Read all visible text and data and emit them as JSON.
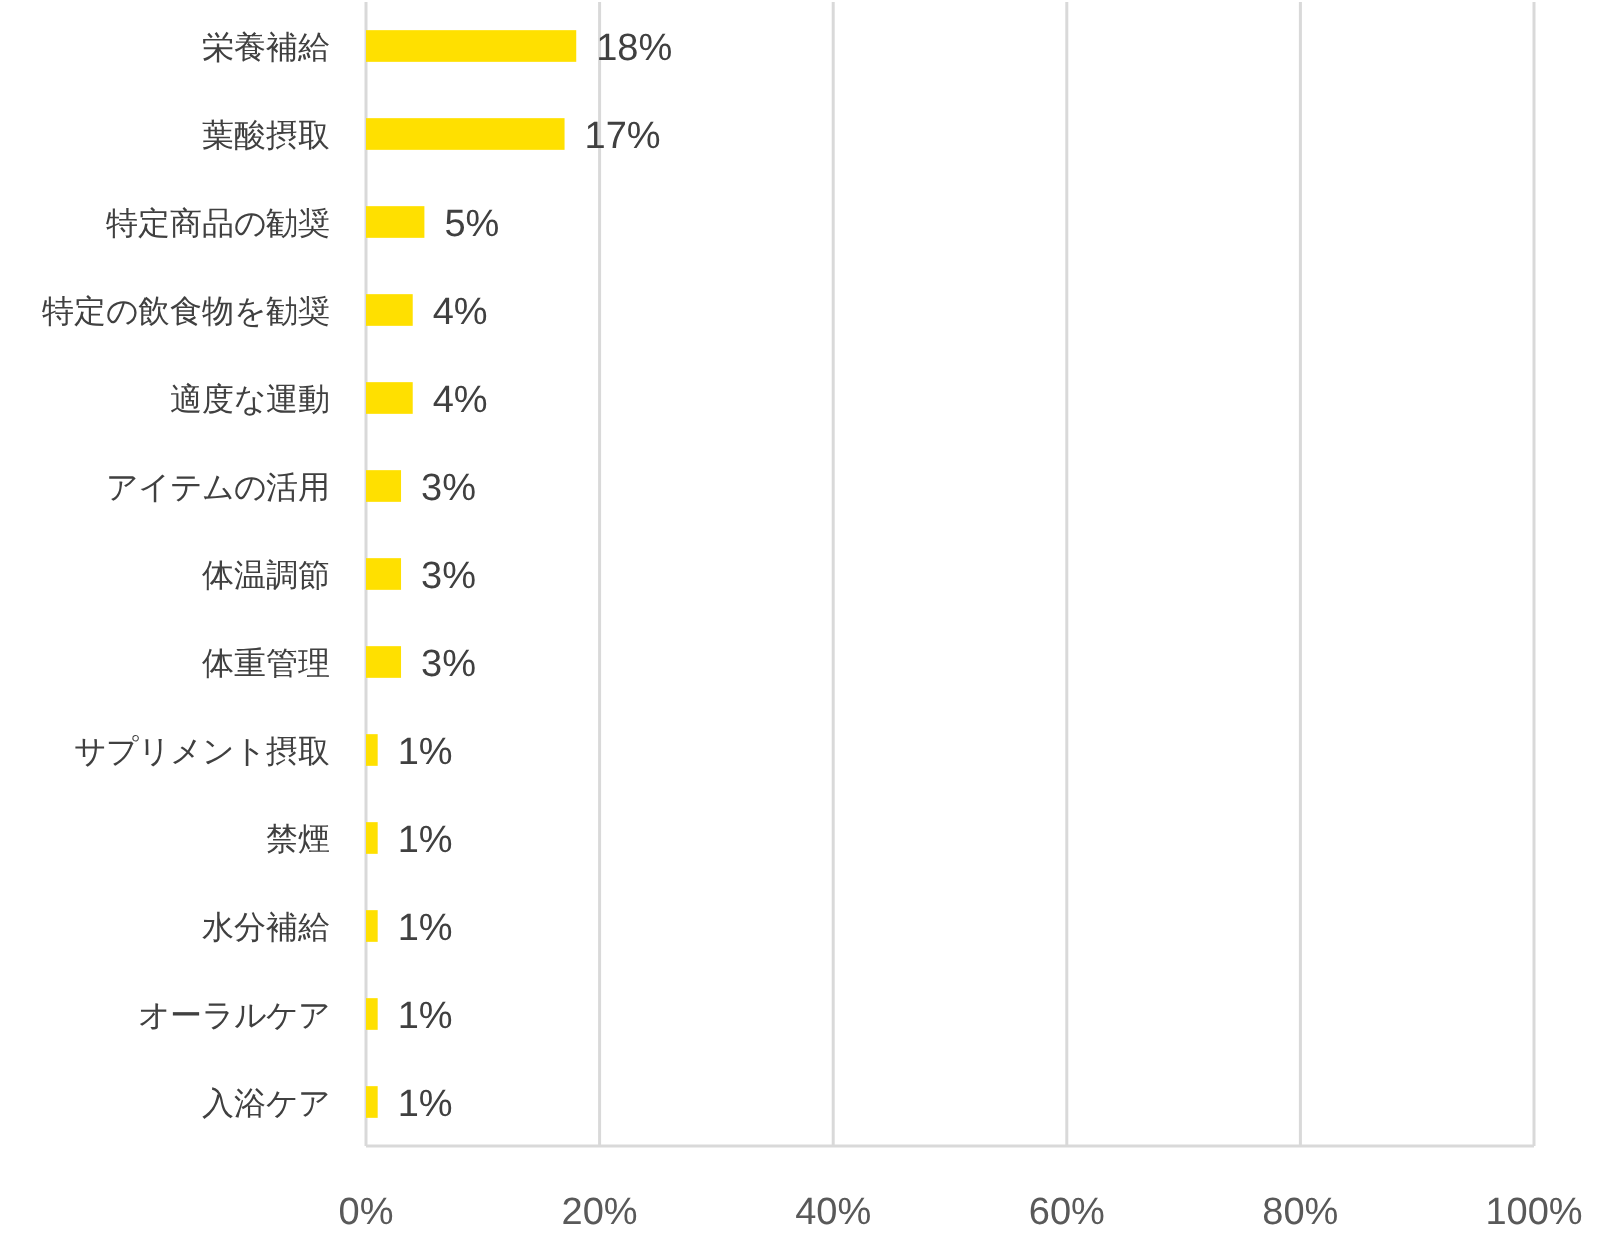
{
  "chart_data": {
    "type": "bar",
    "orientation": "horizontal",
    "categories": [
      "栄養補給",
      "葉酸摂取",
      "特定商品の勧奨",
      "特定の飲食物を勧奨",
      "適度な運動",
      "アイテムの活用",
      "体温調節",
      "体重管理",
      "サプリメント摂取",
      "禁煙",
      "水分補給",
      "オーラルケア",
      "入浴ケア"
    ],
    "values": [
      18,
      17,
      5,
      4,
      4,
      3,
      3,
      3,
      1,
      1,
      1,
      1,
      1
    ],
    "value_labels": [
      "18%",
      "17%",
      "5%",
      "4%",
      "4%",
      "3%",
      "3%",
      "3%",
      "1%",
      "1%",
      "1%",
      "1%",
      "1%"
    ],
    "color": "#ffe000",
    "xlim": [
      0,
      100
    ],
    "xticks": [
      {
        "value": 0,
        "label": "0%"
      },
      {
        "value": 20,
        "label": "20%"
      },
      {
        "value": 40,
        "label": "40%"
      },
      {
        "value": 60,
        "label": "60%"
      },
      {
        "value": 80,
        "label": "80%"
      },
      {
        "value": 100,
        "label": "100%"
      }
    ],
    "grid": "x"
  }
}
